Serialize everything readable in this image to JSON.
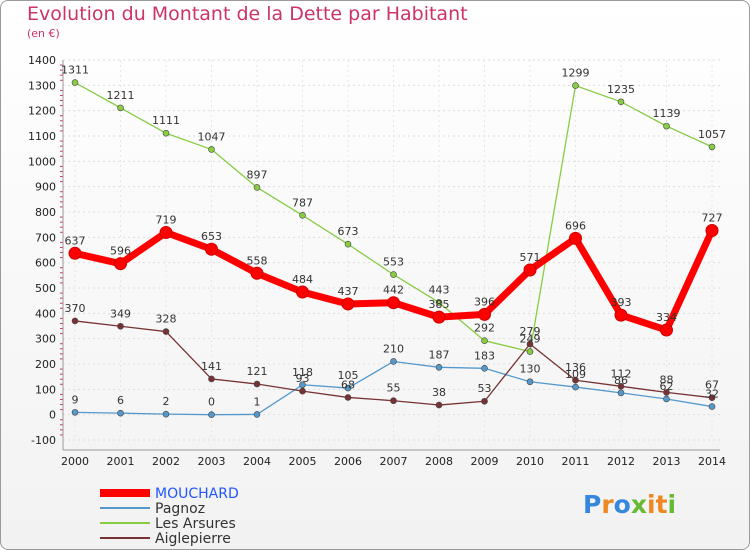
{
  "chart_data": {
    "type": "line",
    "title": "Evolution du Montant de la Dette par Habitant",
    "subtitle": "(en €)",
    "x": [
      "2000",
      "2001",
      "2002",
      "2003",
      "2004",
      "2005",
      "2006",
      "2007",
      "2008",
      "2009",
      "2010",
      "2011",
      "2012",
      "2013",
      "2014"
    ],
    "ylim": [
      -100,
      1400
    ],
    "yticks": [
      -100,
      0,
      100,
      200,
      300,
      400,
      500,
      600,
      700,
      800,
      900,
      1000,
      1100,
      1200,
      1300,
      1400
    ],
    "grid": true,
    "legend_position": "bottom-left",
    "series": [
      {
        "name": "MOUCHARD",
        "color": "#ff0000",
        "values": [
          637,
          596,
          719,
          653,
          558,
          484,
          437,
          442,
          385,
          396,
          571,
          696,
          393,
          334,
          727
        ]
      },
      {
        "name": "Pagnoz",
        "color": "#5599cc",
        "values": [
          9,
          6,
          2,
          0,
          1,
          118,
          105,
          210,
          187,
          183,
          130,
          109,
          86,
          62,
          32
        ]
      },
      {
        "name": "Les Arsures",
        "color": "#88cc44",
        "values": [
          1311,
          1211,
          1111,
          1047,
          897,
          787,
          673,
          553,
          443,
          292,
          249,
          1299,
          1235,
          1139,
          1057
        ]
      },
      {
        "name": "Aiglepierre",
        "color": "#773333",
        "values": [
          370,
          349,
          328,
          141,
          121,
          93,
          68,
          55,
          38,
          53,
          279,
          136,
          112,
          88,
          67
        ]
      }
    ]
  },
  "logo": {
    "text": "Proxiti",
    "letters": [
      "P",
      "r",
      "o",
      "x",
      "i",
      "t",
      "i"
    ]
  }
}
